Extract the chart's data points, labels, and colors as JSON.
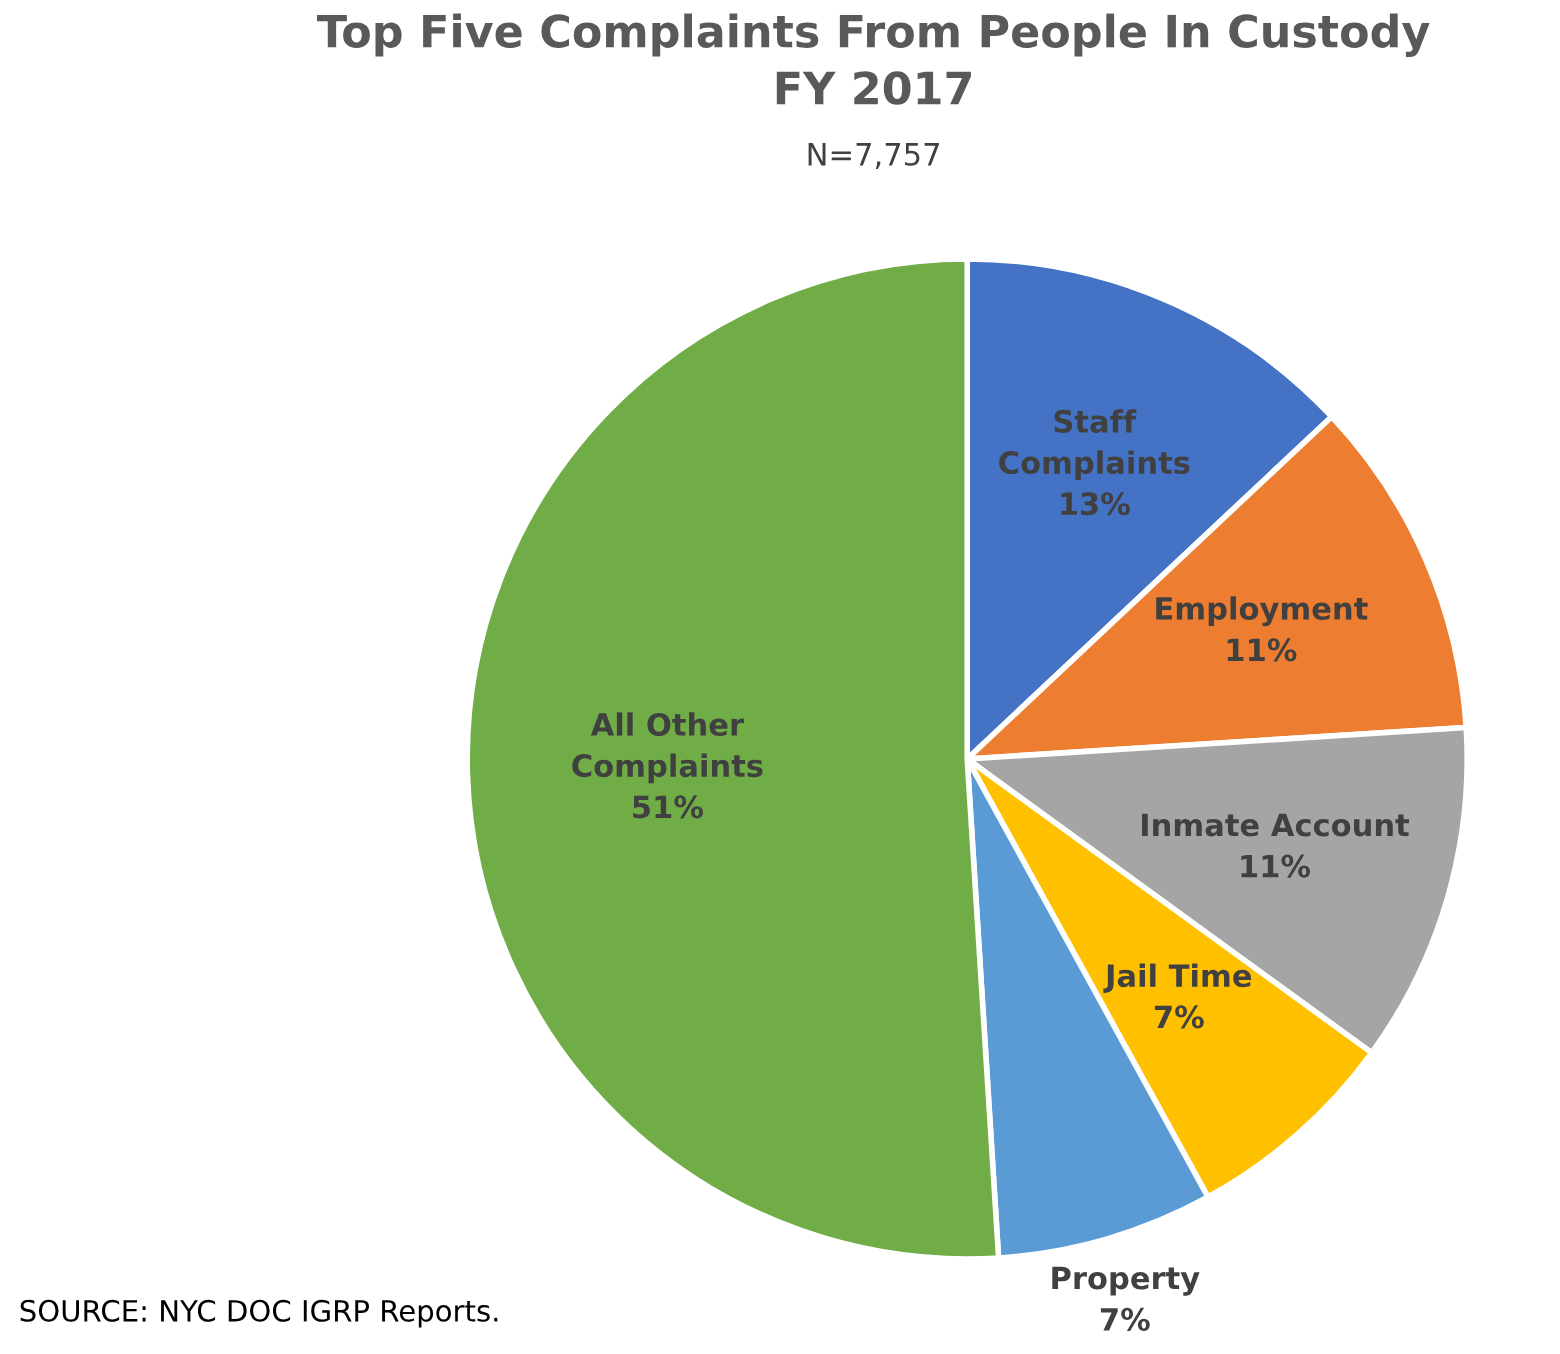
{
  "chart_data": {
    "type": "pie",
    "title": "Top Five Complaints From People In Custody\nFY 2017",
    "subtitle": "N=7,757",
    "categories": [
      "Staff Complaints",
      "Employment",
      "Inmate Account",
      "Jail Time",
      "Property",
      "All Other Complaints"
    ],
    "values": [
      13,
      11,
      11,
      7,
      7,
      51
    ],
    "colors": [
      "#4472c4",
      "#ed7d31",
      "#a5a5a5",
      "#ffc000",
      "#5b9bd5",
      "#70ad47"
    ],
    "value_labels": [
      "13%",
      "11%",
      "11%",
      "7%",
      "7%",
      "51%"
    ],
    "legend": false,
    "annotations": [
      "SOURCE: NYC DOC IGRP Reports."
    ]
  }
}
